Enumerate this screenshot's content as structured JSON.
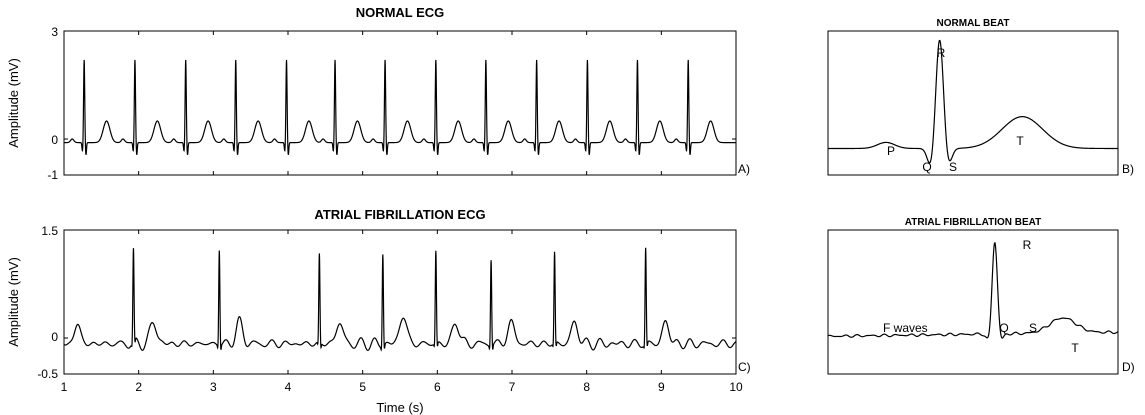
{
  "chart_data": [
    {
      "type": "line",
      "title": "NORMAL ECG",
      "ylabel": "Amplitude (mV)",
      "xlabel": "",
      "xlim": [
        1,
        10
      ],
      "ylim": [
        -1,
        3
      ],
      "yticks": [
        -1,
        0,
        3
      ],
      "xticks": [
        1,
        2,
        3,
        4,
        5,
        6,
        7,
        8,
        9,
        10
      ],
      "panel_label": "A)",
      "grid": false,
      "series": [
        {
          "r_peak_times": [
            1.27,
            1.95,
            2.63,
            3.3,
            3.98,
            4.63,
            5.3,
            5.98,
            6.65,
            7.33,
            8.01,
            8.68,
            9.36
          ],
          "r_peak_amplitude": 2.2,
          "p_amplitude": 0.1,
          "q_amplitude": -0.25,
          "s_amplitude": -0.35,
          "t_amplitude": 0.6,
          "baseline": -0.1
        }
      ]
    },
    {
      "type": "line",
      "title": "ATRIAL FIBRILLATION ECG",
      "ylabel": "Amplitude (mV)",
      "xlabel": "Time (s)",
      "xlim": [
        1,
        10
      ],
      "ylim": [
        -0.5,
        1.5
      ],
      "yticks": [
        -0.5,
        0,
        1.5
      ],
      "xticks": [
        1,
        2,
        3,
        4,
        5,
        6,
        7,
        8,
        9,
        10
      ],
      "panel_label": "C)",
      "grid": false,
      "series": [
        {
          "r_peak_times": [
            1.93,
            3.08,
            4.42,
            5.27,
            5.98,
            6.72,
            7.57,
            8.79
          ],
          "r_peak_amplitudes": [
            1.2,
            1.25,
            1.15,
            1.2,
            1.2,
            1.12,
            1.18,
            1.25
          ],
          "t_amplitude": 0.25,
          "baseline": -0.08
        }
      ]
    },
    {
      "type": "line",
      "title": "NORMAL BEAT",
      "panel_label": "B)",
      "wave_labels": [
        "P",
        "Q",
        "R",
        "S",
        "T"
      ]
    },
    {
      "type": "line",
      "title": "ATRIAL FIBRILLATION BEAT",
      "panel_label": "D)",
      "wave_labels": [
        "F waves",
        "Q",
        "R",
        "S",
        "T"
      ]
    }
  ]
}
